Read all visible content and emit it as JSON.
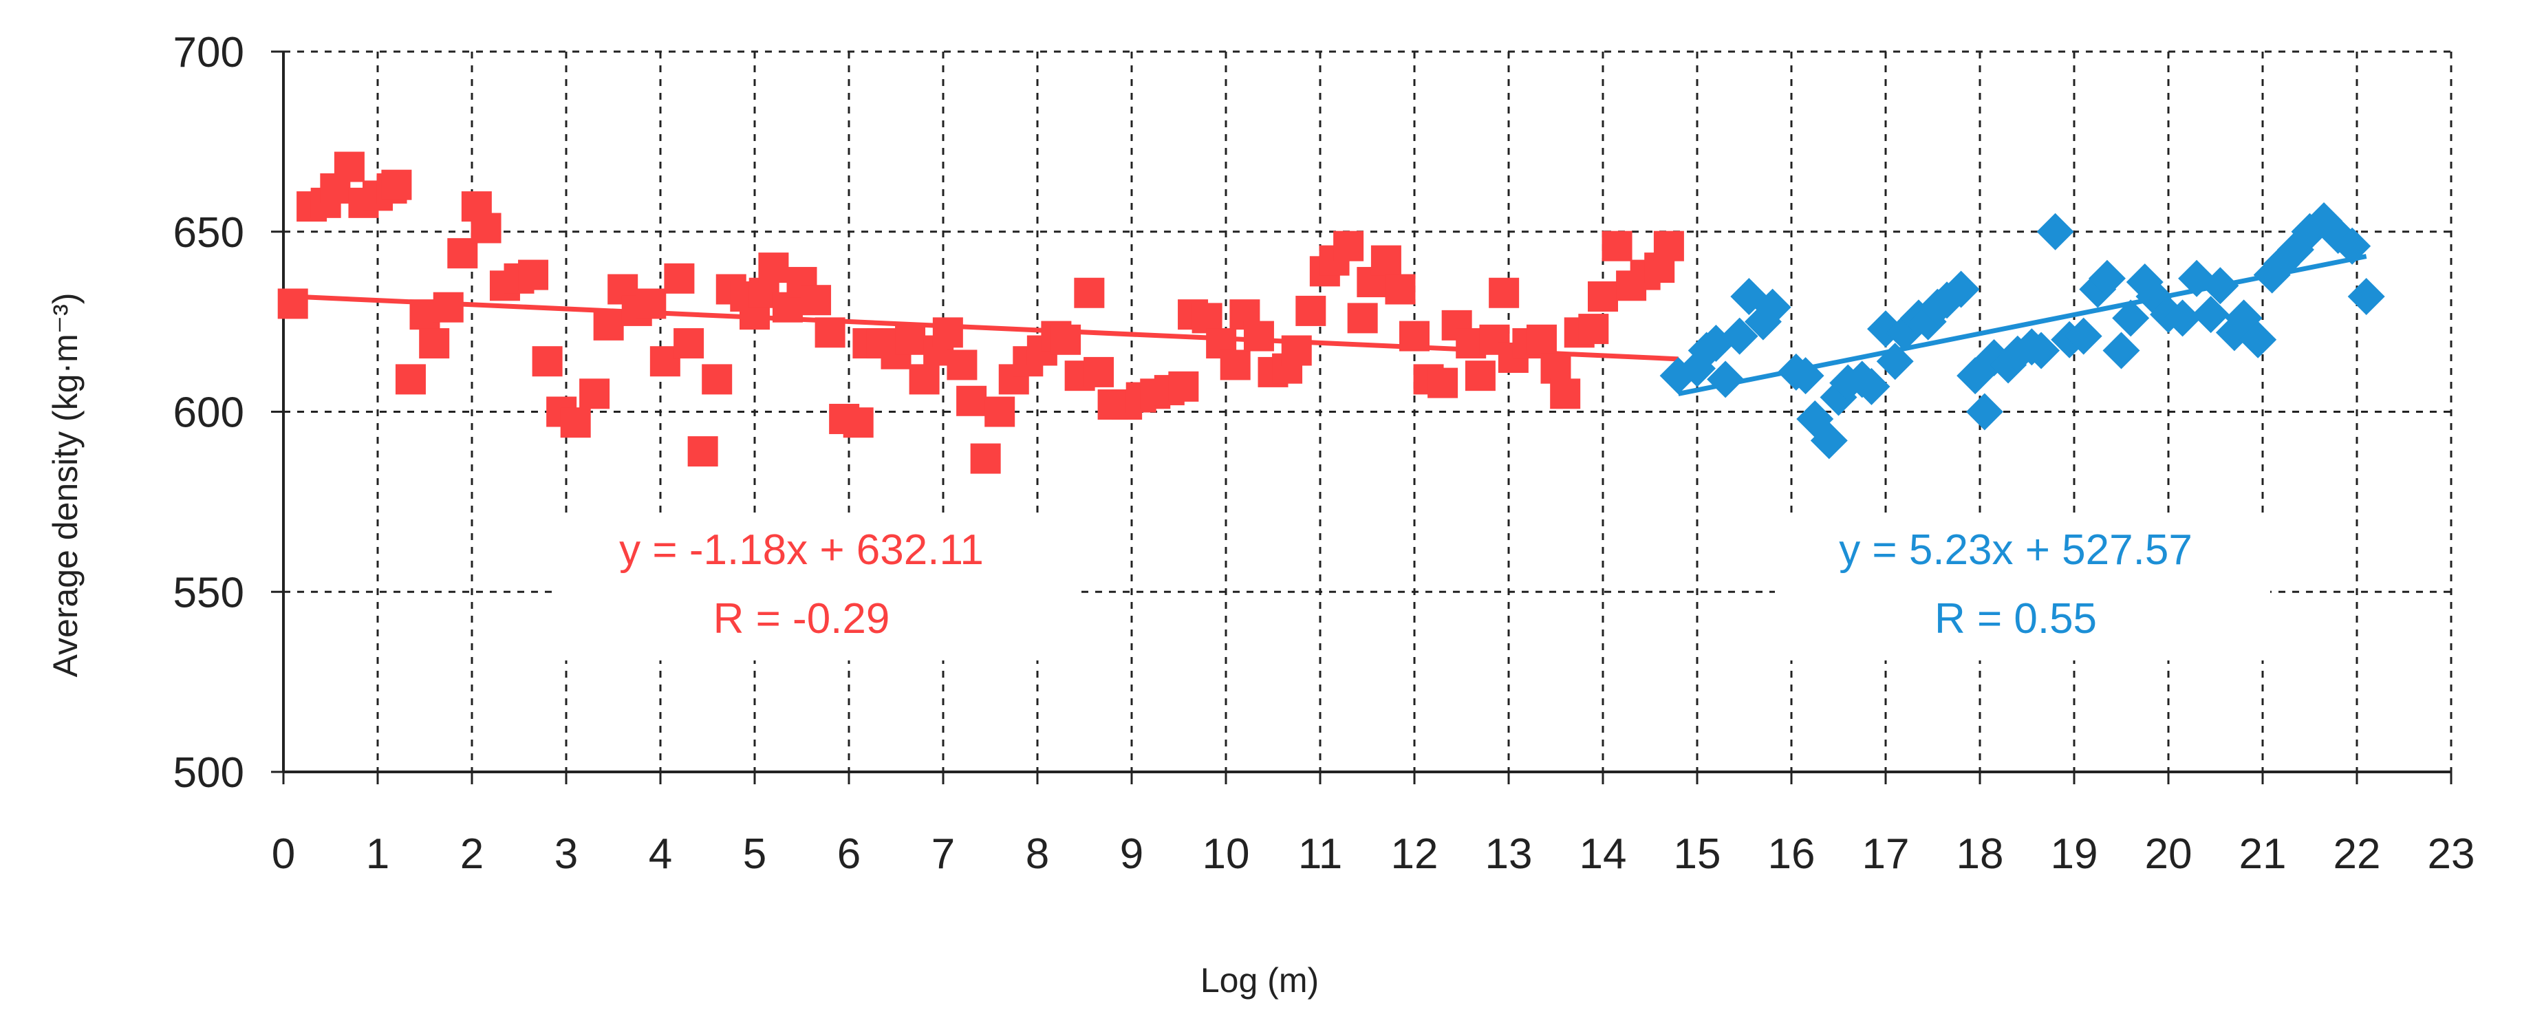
{
  "chart_data": {
    "type": "scatter",
    "title": "",
    "xlabel": "Log (m)",
    "ylabel": "Average density (kg·m⁻³)",
    "xlim": [
      0,
      23
    ],
    "ylim": [
      500,
      700
    ],
    "x_ticks": [
      "0",
      "1",
      "2",
      "3",
      "4",
      "5",
      "6",
      "7",
      "8",
      "9",
      "10",
      "11",
      "12",
      "13",
      "14",
      "15",
      "16",
      "17",
      "18",
      "19",
      "20",
      "21",
      "22",
      "23"
    ],
    "y_ticks": [
      "500",
      "550",
      "600",
      "650",
      "700"
    ],
    "grid": true,
    "legend": "none",
    "series": [
      {
        "marker": "square",
        "color": "#fb4141",
        "points": [
          [
            0.1,
            630
          ],
          [
            0.3,
            657
          ],
          [
            0.45,
            658
          ],
          [
            0.55,
            662
          ],
          [
            0.7,
            668
          ],
          [
            0.85,
            658
          ],
          [
            1.0,
            660
          ],
          [
            1.15,
            662
          ],
          [
            1.2,
            663
          ],
          [
            1.35,
            609
          ],
          [
            1.5,
            627
          ],
          [
            1.6,
            619
          ],
          [
            1.75,
            629
          ],
          [
            1.9,
            644
          ],
          [
            2.05,
            657
          ],
          [
            2.15,
            651
          ],
          [
            2.35,
            635
          ],
          [
            2.5,
            637
          ],
          [
            2.65,
            638
          ],
          [
            2.8,
            614
          ],
          [
            2.95,
            600
          ],
          [
            3.1,
            597
          ],
          [
            3.3,
            605
          ],
          [
            3.45,
            624
          ],
          [
            3.6,
            634
          ],
          [
            3.75,
            628
          ],
          [
            3.9,
            630
          ],
          [
            4.05,
            614
          ],
          [
            4.2,
            637
          ],
          [
            4.3,
            619
          ],
          [
            4.45,
            589
          ],
          [
            4.6,
            609
          ],
          [
            4.75,
            634
          ],
          [
            4.9,
            632
          ],
          [
            5.0,
            627
          ],
          [
            5.1,
            633
          ],
          [
            5.2,
            640
          ],
          [
            5.35,
            629
          ],
          [
            5.5,
            636
          ],
          [
            5.65,
            631
          ],
          [
            5.8,
            622
          ],
          [
            5.95,
            598
          ],
          [
            6.1,
            597
          ],
          [
            6.2,
            619
          ],
          [
            6.35,
            619
          ],
          [
            6.5,
            616
          ],
          [
            6.65,
            620
          ],
          [
            6.8,
            609
          ],
          [
            6.95,
            617
          ],
          [
            7.05,
            622
          ],
          [
            7.2,
            613
          ],
          [
            7.3,
            603
          ],
          [
            7.45,
            587
          ],
          [
            7.6,
            600
          ],
          [
            7.75,
            609
          ],
          [
            7.9,
            614
          ],
          [
            8.05,
            617
          ],
          [
            8.2,
            621
          ],
          [
            8.3,
            620
          ],
          [
            8.45,
            610
          ],
          [
            8.55,
            633
          ],
          [
            8.65,
            611
          ],
          [
            8.8,
            602
          ],
          [
            8.95,
            602
          ],
          [
            9.1,
            604
          ],
          [
            9.25,
            605
          ],
          [
            9.4,
            606
          ],
          [
            9.55,
            607
          ],
          [
            9.65,
            627
          ],
          [
            9.8,
            626
          ],
          [
            9.95,
            619
          ],
          [
            10.1,
            613
          ],
          [
            10.2,
            627
          ],
          [
            10.35,
            621
          ],
          [
            10.5,
            611
          ],
          [
            10.65,
            612
          ],
          [
            10.75,
            617
          ],
          [
            10.9,
            628
          ],
          [
            11.05,
            639
          ],
          [
            11.15,
            642
          ],
          [
            11.3,
            646
          ],
          [
            11.45,
            626
          ],
          [
            11.55,
            636
          ],
          [
            11.7,
            642
          ],
          [
            11.85,
            634
          ],
          [
            12.0,
            621
          ],
          [
            12.15,
            609
          ],
          [
            12.3,
            608
          ],
          [
            12.45,
            624
          ],
          [
            12.6,
            619
          ],
          [
            12.7,
            610
          ],
          [
            12.85,
            620
          ],
          [
            12.95,
            633
          ],
          [
            13.05,
            615
          ],
          [
            13.2,
            619
          ],
          [
            13.35,
            620
          ],
          [
            13.5,
            612
          ],
          [
            13.6,
            605
          ],
          [
            13.75,
            622
          ],
          [
            13.9,
            623
          ],
          [
            14.0,
            632
          ],
          [
            14.15,
            646
          ],
          [
            14.3,
            635
          ],
          [
            14.45,
            638
          ],
          [
            14.6,
            640
          ],
          [
            14.7,
            646
          ]
        ],
        "trendline": {
          "label": "y = -1.18x + 632.11",
          "r_label": "R = -0.29",
          "slope": -1.18,
          "intercept": 632.11,
          "x_range": [
            0,
            14.8
          ]
        }
      },
      {
        "marker": "diamond",
        "color": "#1c8fd6",
        "points": [
          [
            14.8,
            610
          ],
          [
            15.0,
            612
          ],
          [
            15.1,
            617
          ],
          [
            15.2,
            619
          ],
          [
            15.3,
            609
          ],
          [
            15.45,
            621
          ],
          [
            15.55,
            632
          ],
          [
            15.7,
            625
          ],
          [
            15.8,
            629
          ],
          [
            16.05,
            611
          ],
          [
            16.15,
            610
          ],
          [
            16.25,
            598
          ],
          [
            16.4,
            592
          ],
          [
            16.5,
            604
          ],
          [
            16.6,
            608
          ],
          [
            16.75,
            609
          ],
          [
            16.85,
            607
          ],
          [
            17.0,
            623
          ],
          [
            17.1,
            614
          ],
          [
            17.2,
            622
          ],
          [
            17.35,
            626
          ],
          [
            17.45,
            625
          ],
          [
            17.55,
            629
          ],
          [
            17.65,
            631
          ],
          [
            17.8,
            634
          ],
          [
            17.95,
            610
          ],
          [
            18.05,
            600
          ],
          [
            18.15,
            615
          ],
          [
            18.3,
            613
          ],
          [
            18.4,
            616
          ],
          [
            18.55,
            618
          ],
          [
            18.65,
            617
          ],
          [
            18.8,
            650
          ],
          [
            18.95,
            620
          ],
          [
            19.1,
            621
          ],
          [
            19.25,
            634
          ],
          [
            19.35,
            637
          ],
          [
            19.5,
            617
          ],
          [
            19.6,
            626
          ],
          [
            19.75,
            636
          ],
          [
            19.85,
            632
          ],
          [
            20.0,
            627
          ],
          [
            20.15,
            626
          ],
          [
            20.3,
            637
          ],
          [
            20.45,
            627
          ],
          [
            20.55,
            635
          ],
          [
            20.7,
            622
          ],
          [
            20.8,
            626
          ],
          [
            20.95,
            620
          ],
          [
            21.1,
            638
          ],
          [
            21.2,
            641
          ],
          [
            21.35,
            645
          ],
          [
            21.5,
            650
          ],
          [
            21.65,
            653
          ],
          [
            21.8,
            649
          ],
          [
            21.95,
            646
          ],
          [
            22.1,
            632
          ]
        ],
        "trendline": {
          "label": "y = 5.23x + 527.57",
          "r_label": "R = 0.55",
          "slope": 5.23,
          "intercept": 527.57,
          "x_range": [
            14.8,
            22.1
          ]
        }
      }
    ]
  }
}
